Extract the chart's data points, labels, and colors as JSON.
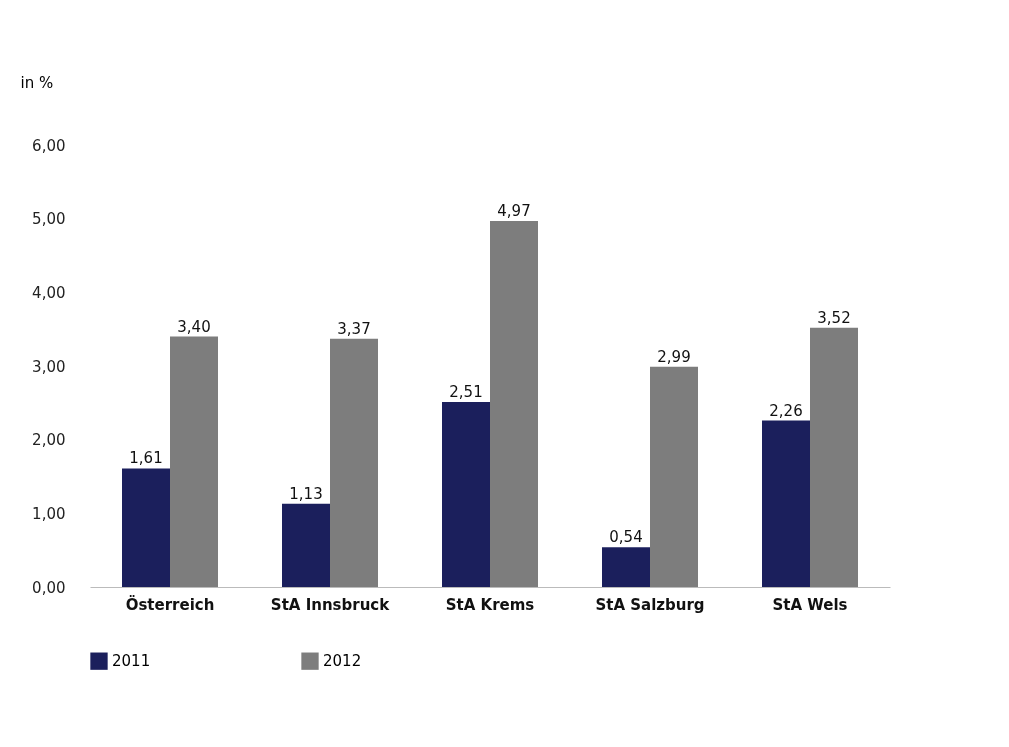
{
  "chart_data": {
    "type": "bar",
    "ylabel": "in %",
    "categories": [
      "Österreich",
      "StA Innsbruck",
      "StA Krems",
      "StA Salzburg",
      "StA Wels"
    ],
    "series": [
      {
        "name": "2011",
        "color": "#1b1f5c",
        "values": [
          1.61,
          1.13,
          2.51,
          0.54,
          2.26
        ],
        "value_labels": [
          "1,61",
          "1,13",
          "2,51",
          "0,54",
          "2,26"
        ]
      },
      {
        "name": "2012",
        "color": "#7d7d7d",
        "values": [
          3.4,
          3.37,
          4.97,
          2.99,
          3.52
        ],
        "value_labels": [
          "3,40",
          "3,37",
          "4,97",
          "2,99",
          "3,52"
        ]
      }
    ],
    "ylim": [
      0,
      6
    ],
    "yticks": [
      {
        "value": 0,
        "label": "0,00"
      },
      {
        "value": 1,
        "label": "1,00"
      },
      {
        "value": 2,
        "label": "2,00"
      },
      {
        "value": 3,
        "label": "3,00"
      },
      {
        "value": 4,
        "label": "4,00"
      },
      {
        "value": 5,
        "label": "5,00"
      },
      {
        "value": 6,
        "label": "6,00"
      }
    ],
    "grid": false,
    "legend": "bottom"
  }
}
